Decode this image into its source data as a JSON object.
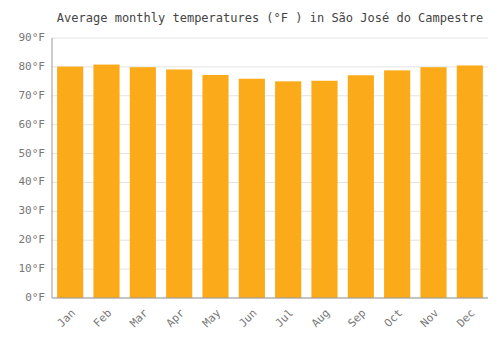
{
  "chart_data": {
    "type": "bar",
    "title": "Average monthly temperatures (°F ) in São José do Campestre",
    "categories": [
      "Jan",
      "Feb",
      "Mar",
      "Apr",
      "May",
      "Jun",
      "Jul",
      "Aug",
      "Sep",
      "Oct",
      "Nov",
      "Dec"
    ],
    "values": [
      80.1,
      80.8,
      79.9,
      79.1,
      77.2,
      75.9,
      75.0,
      75.2,
      77.1,
      78.8,
      79.9,
      80.5
    ],
    "color": "#FBAA19",
    "ylim": [
      0,
      90
    ],
    "yticks": [
      {
        "value": 0,
        "label": "0°F"
      },
      {
        "value": 10,
        "label": "10°F"
      },
      {
        "value": 20,
        "label": "20°F"
      },
      {
        "value": 30,
        "label": "30°F"
      },
      {
        "value": 40,
        "label": "40°F"
      },
      {
        "value": 50,
        "label": "50°F"
      },
      {
        "value": 60,
        "label": "60°F"
      },
      {
        "value": 70,
        "label": "70°F"
      },
      {
        "value": 80,
        "label": "80°F"
      },
      {
        "value": 90,
        "label": "90°F"
      }
    ],
    "grid": true
  }
}
